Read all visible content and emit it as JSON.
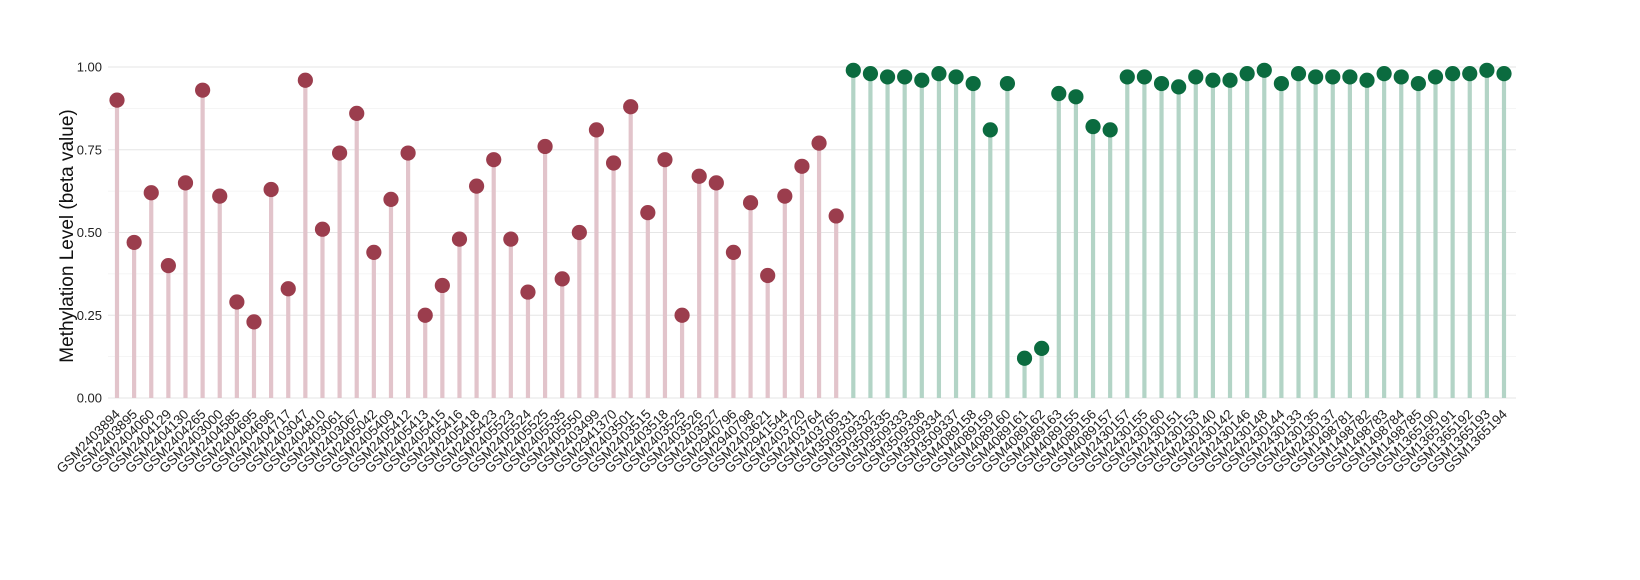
{
  "chart_data": {
    "type": "lollipop",
    "title": "",
    "xlabel": "",
    "ylabel": "Methylation Level (beta value)",
    "ylim": [
      0,
      1
    ],
    "yticks": [
      0.0,
      0.25,
      0.5,
      0.75,
      1.0
    ],
    "ytick_labels": [
      "0.00",
      "0.25",
      "0.50",
      "0.75",
      "1.00"
    ],
    "grid": true,
    "legend": "none",
    "groups": [
      {
        "color": "#9b3d4d",
        "stem_color": "#e2c4cb"
      },
      {
        "color": "#0b6b3f",
        "stem_color": "#b3d4c6"
      }
    ],
    "categories": [
      "GSM2403894",
      "GSM2403895",
      "GSM2404060",
      "GSM2404129",
      "GSM2404130",
      "GSM2404265",
      "GSM2403000",
      "GSM2404585",
      "GSM2404695",
      "GSM2404696",
      "GSM2404717",
      "GSM2403047",
      "GSM2404810",
      "GSM2403061",
      "GSM2403067",
      "GSM2405042",
      "GSM2405409",
      "GSM2405412",
      "GSM2405413",
      "GSM2405415",
      "GSM2405416",
      "GSM2405418",
      "GSM2405423",
      "GSM2405523",
      "GSM2405524",
      "GSM2405525",
      "GSM2405535",
      "GSM2405550",
      "GSM2403499",
      "GSM2941370",
      "GSM2403501",
      "GSM2403515",
      "GSM2403518",
      "GSM2403525",
      "GSM2403526",
      "GSM2403527",
      "GSM2940796",
      "GSM2940798",
      "GSM2403621",
      "GSM2941544",
      "GSM2403720",
      "GSM2403764",
      "GSM2403765",
      "GSM3509331",
      "GSM3509332",
      "GSM3509335",
      "GSM3509333",
      "GSM3509336",
      "GSM3509334",
      "GSM3509337",
      "GSM4089158",
      "GSM4089159",
      "GSM4089160",
      "GSM4089161",
      "GSM4089162",
      "GSM4089163",
      "GSM4089155",
      "GSM4089156",
      "GSM4089157",
      "GSM2430157",
      "GSM2430155",
      "GSM2430160",
      "GSM2430151",
      "GSM2430153",
      "GSM2430140",
      "GSM2430142",
      "GSM2430146",
      "GSM2430148",
      "GSM2430144",
      "GSM2430133",
      "GSM2430135",
      "GSM2430137",
      "GSM1498781",
      "GSM1498782",
      "GSM1498783",
      "GSM1498784",
      "GSM1498785",
      "GSM1365190",
      "GSM1365191",
      "GSM1365192",
      "GSM1365193",
      "GSM1365194"
    ],
    "values": [
      0.9,
      0.47,
      0.62,
      0.4,
      0.65,
      0.93,
      0.61,
      0.29,
      0.23,
      0.63,
      0.33,
      0.96,
      0.51,
      0.74,
      0.86,
      0.44,
      0.6,
      0.74,
      0.25,
      0.34,
      0.48,
      0.64,
      0.72,
      0.48,
      0.32,
      0.76,
      0.36,
      0.5,
      0.81,
      0.71,
      0.88,
      0.56,
      0.72,
      0.25,
      0.67,
      0.65,
      0.44,
      0.59,
      0.37,
      0.61,
      0.7,
      0.77,
      0.55,
      0.99,
      0.98,
      0.97,
      0.97,
      0.96,
      0.98,
      0.97,
      0.95,
      0.81,
      0.95,
      0.12,
      0.15,
      0.92,
      0.91,
      0.82,
      0.81,
      0.97,
      0.97,
      0.95,
      0.94,
      0.97,
      0.96,
      0.96,
      0.98,
      0.99,
      0.95,
      0.98,
      0.97,
      0.97,
      0.97,
      0.96,
      0.98,
      0.97,
      0.95,
      0.97,
      0.98,
      0.98,
      0.99,
      0.98
    ],
    "group_of": [
      0,
      0,
      0,
      0,
      0,
      0,
      0,
      0,
      0,
      0,
      0,
      0,
      0,
      0,
      0,
      0,
      0,
      0,
      0,
      0,
      0,
      0,
      0,
      0,
      0,
      0,
      0,
      0,
      0,
      0,
      0,
      0,
      0,
      0,
      0,
      0,
      0,
      0,
      0,
      0,
      0,
      0,
      0,
      1,
      1,
      1,
      1,
      1,
      1,
      1,
      1,
      1,
      1,
      1,
      1,
      1,
      1,
      1,
      1,
      1,
      1,
      1,
      1,
      1,
      1,
      1,
      1,
      1,
      1,
      1,
      1,
      1,
      1,
      1,
      1,
      1,
      1,
      1,
      1,
      1,
      1,
      1
    ]
  }
}
